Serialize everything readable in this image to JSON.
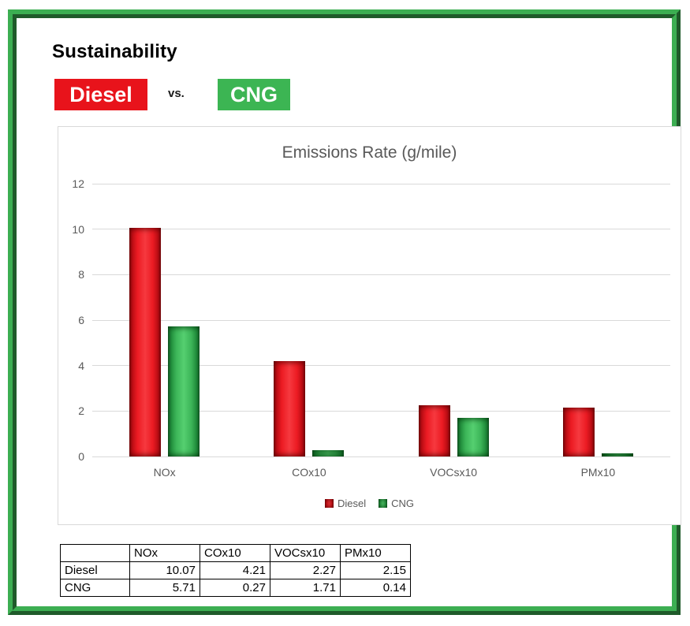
{
  "header": {
    "title": "Sustainability",
    "diesel_badge": "Diesel",
    "vs_label": "vs.",
    "cng_badge": "CNG"
  },
  "colors": {
    "diesel_red": "#e8131b",
    "cng_green": "#3cb553",
    "frame_green": "#3cae52",
    "axis_text_gray": "#595959",
    "gridline_gray": "#d9d9d9"
  },
  "chart_data": {
    "type": "bar",
    "title": "Emissions Rate (g/mile)",
    "categories": [
      "NOx",
      "COx10",
      "VOCsx10",
      "PMx10"
    ],
    "series": [
      {
        "name": "Diesel",
        "color": "#e8131b",
        "values": [
          10.07,
          4.21,
          2.27,
          2.15
        ]
      },
      {
        "name": "CNG",
        "color": "#3cb553",
        "values": [
          5.71,
          0.27,
          1.71,
          0.14
        ]
      }
    ],
    "xlabel": "",
    "ylabel": "",
    "ylim": [
      0,
      12
    ],
    "ytick_step": 2,
    "grid": true,
    "legend": [
      "Diesel",
      "CNG"
    ],
    "legend_position": "bottom"
  },
  "table": {
    "corner": "",
    "columns": [
      "NOx",
      "COx10",
      "VOCsx10",
      "PMx10"
    ],
    "rows": [
      {
        "label": "Diesel",
        "values": [
          "10.07",
          "4.21",
          "2.27",
          "2.15"
        ]
      },
      {
        "label": "CNG",
        "values": [
          "5.71",
          "0.27",
          "1.71",
          "0.14"
        ]
      }
    ]
  }
}
